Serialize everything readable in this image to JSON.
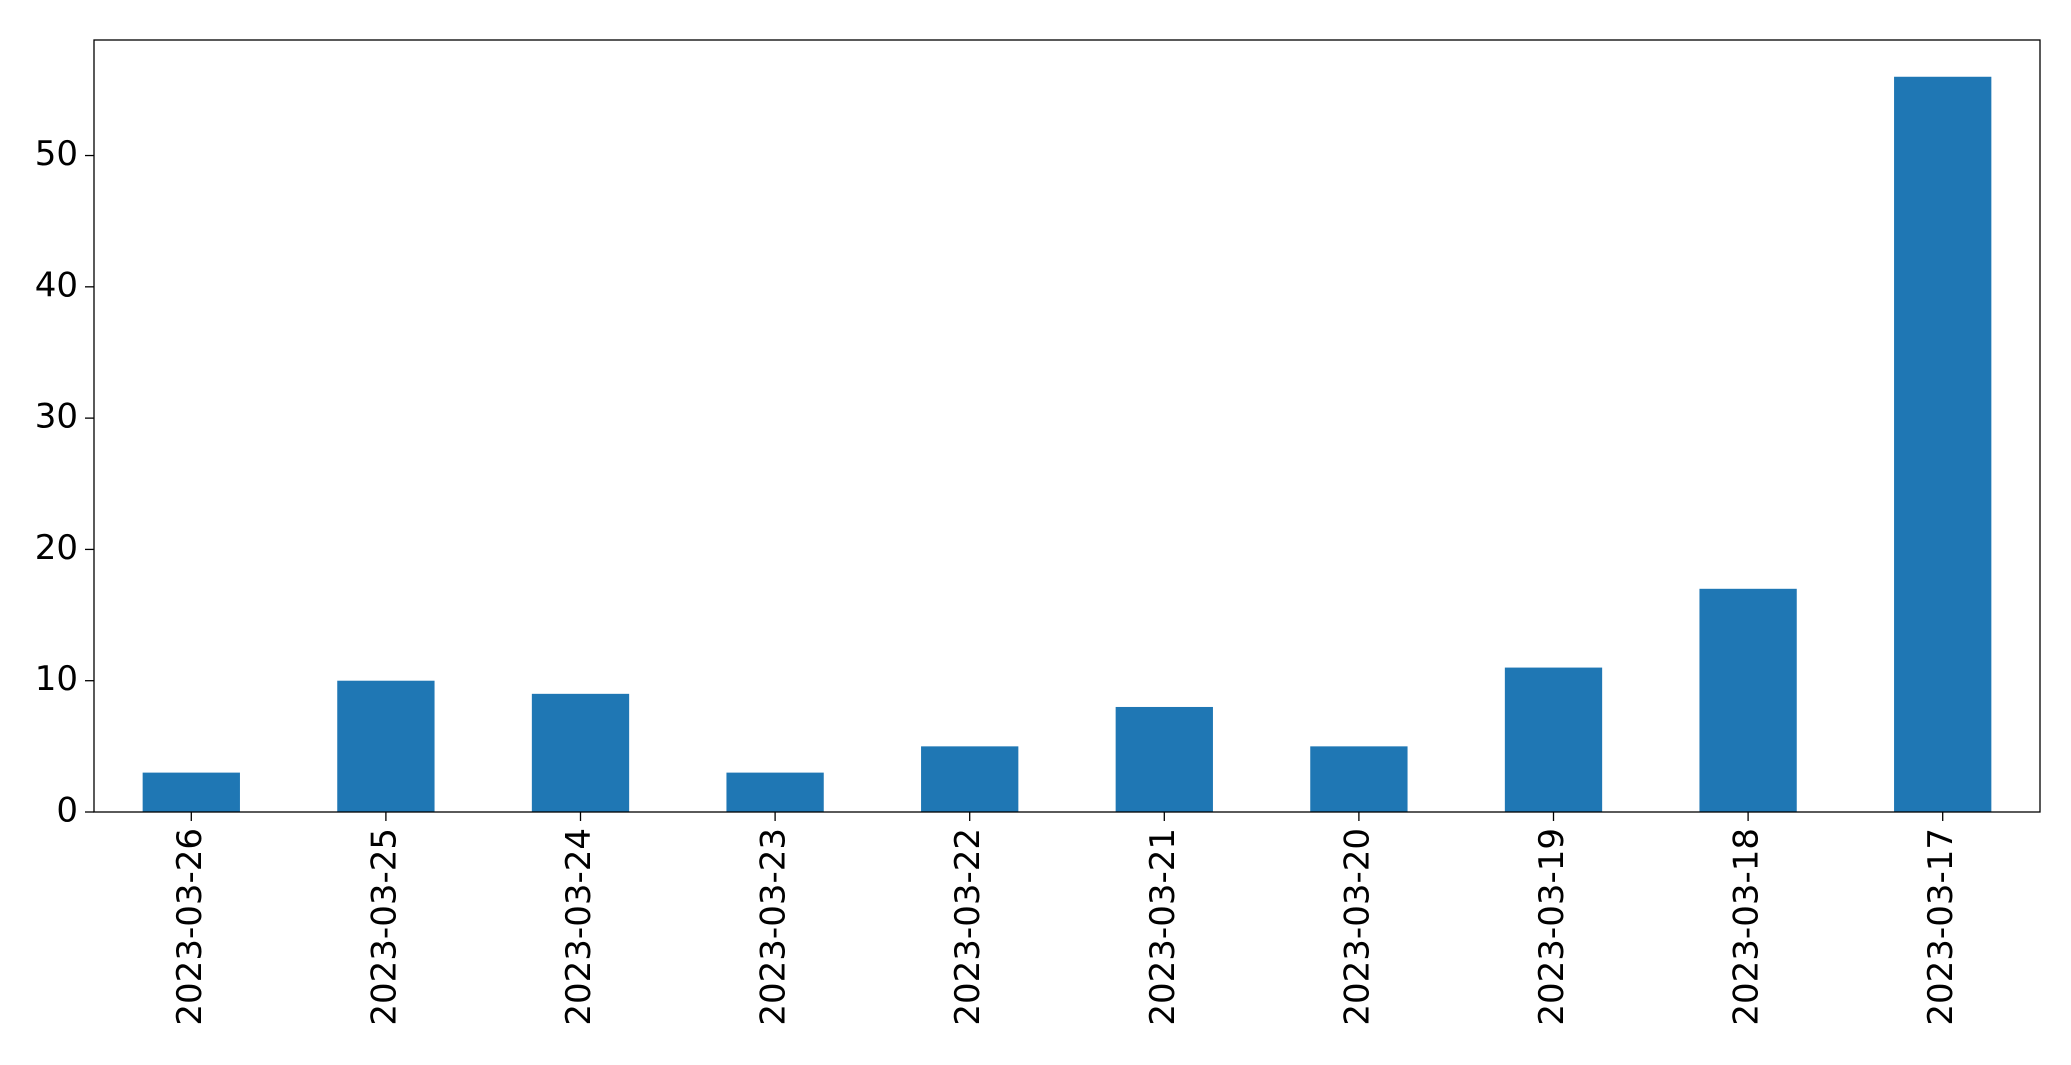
{
  "chart_data": {
    "type": "bar",
    "categories": [
      "2023-03-26",
      "2023-03-25",
      "2023-03-24",
      "2023-03-23",
      "2023-03-22",
      "2023-03-21",
      "2023-03-20",
      "2023-03-19",
      "2023-03-18",
      "2023-03-17"
    ],
    "values": [
      3,
      10,
      9,
      3,
      5,
      8,
      5,
      11,
      17,
      56
    ],
    "color": "#1f77b4",
    "ylim": [
      0,
      58.8
    ],
    "yticks": [
      0,
      10,
      20,
      30,
      40,
      50
    ],
    "grid": false
  }
}
